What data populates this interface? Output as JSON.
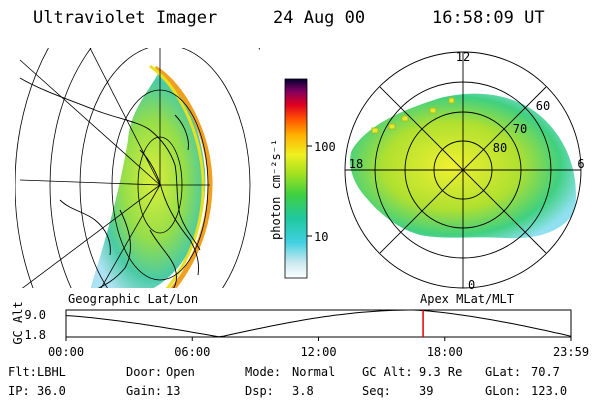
{
  "header": {
    "instrument": "Ultraviolet Imager",
    "date": "24 Aug 00",
    "time": "16:58:09 UT"
  },
  "colorbar": {
    "unit_label": "photon cm⁻²s⁻¹",
    "ticks": [
      "100",
      "10"
    ]
  },
  "left_panel": {
    "caption": "Geographic Lat/Lon"
  },
  "right_panel": {
    "caption": "Apex MLat/MLT",
    "mlt_labels": {
      "top": "12",
      "left": "18",
      "right": "6",
      "bottom": "0"
    },
    "mlat_labels": [
      "60",
      "70",
      "80"
    ]
  },
  "orbit_plot": {
    "ylabel": "GC Alt",
    "y_ticks": [
      "9.0",
      "1.8"
    ],
    "x_ticks": [
      "00:00",
      "06:00",
      "12:00",
      "18:00",
      "23:59"
    ],
    "x_range_hours": [
      0,
      24
    ],
    "y_range_re": [
      1.8,
      9.0
    ],
    "current_time_hours": 16.97,
    "marker_color": "#e00000",
    "minimum_time_hours": 7.3,
    "start_alt_re": 7.5,
    "end_alt_re": 2.0,
    "peak_time_hours": 16.5
  },
  "info": {
    "row1": [
      {
        "label": "Flt:",
        "value": "LBHL"
      },
      {
        "label": "Door:",
        "value": "Open"
      },
      {
        "label": "Mode:",
        "value": "Normal"
      },
      {
        "label": "GC Alt:",
        "value": "9.3 Re"
      },
      {
        "label": "GLat:",
        "value": "70.7"
      }
    ],
    "row2": [
      {
        "label": "IP:",
        "value": "36.0"
      },
      {
        "label": "Gain:",
        "value": "13"
      },
      {
        "label": "Dsp:",
        "value": "3.8"
      },
      {
        "label": "Seq:",
        "value": "39"
      },
      {
        "label": "GLon:",
        "value": "123.0"
      }
    ]
  }
}
